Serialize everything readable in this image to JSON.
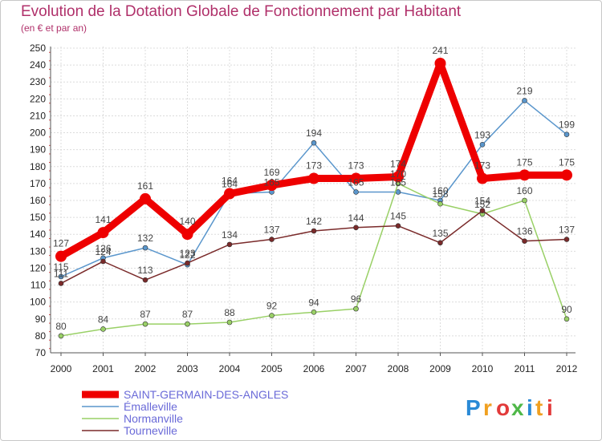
{
  "header": {
    "title": "Evolution de la Dotation Globale de Fonctionnement par Habitant",
    "subtitle": "(en € et par an)"
  },
  "logo": {
    "letters": [
      "P",
      "r",
      "o",
      "x",
      "i",
      "t",
      "i"
    ],
    "colors": [
      "#2a8ad6",
      "#f0a020",
      "#e23a3a",
      "#4fb848",
      "#2a8ad6",
      "#f0a020",
      "#e23a3a"
    ]
  },
  "chart_data": {
    "type": "line",
    "title": "Evolution de la Dotation Globale de Fonctionnement par Habitant",
    "subtitle": "(en € et par an)",
    "x": [
      "2000",
      "2001",
      "2002",
      "2003",
      "2004",
      "2005",
      "2006",
      "2007",
      "2008",
      "2009",
      "2010",
      "2011",
      "2012"
    ],
    "ylim": [
      70,
      250
    ],
    "yticks": [
      70,
      80,
      90,
      100,
      110,
      120,
      130,
      140,
      150,
      160,
      170,
      180,
      190,
      200,
      210,
      220,
      230,
      240,
      250
    ],
    "grid": true,
    "legend_position": "bottom-left",
    "series": [
      {
        "name": "SAINT-GERMAIN-DES-ANGLES",
        "color": "#ee0000",
        "values": [
          127,
          141,
          161,
          140,
          164,
          169,
          173,
          173,
          174,
          241,
          173,
          175,
          175
        ],
        "labels": [
          "127",
          "141",
          "161",
          "140",
          "164",
          "169",
          "173",
          "173",
          "174",
          "241",
          "173",
          "175",
          "175"
        ]
      },
      {
        "name": "Émalleville",
        "color": "#5a96cc",
        "values": [
          115,
          126,
          132,
          122,
          164,
          165,
          194,
          165,
          165,
          160,
          193,
          219,
          199
        ],
        "labels": [
          "115",
          "126",
          "132",
          "122",
          "164",
          "165",
          "194",
          "165",
          "165",
          "160",
          "193",
          "219",
          "199"
        ]
      },
      {
        "name": "Normanville",
        "color": "#99d066",
        "values": [
          80,
          84,
          87,
          87,
          88,
          92,
          94,
          96,
          170,
          158,
          152,
          160,
          90
        ],
        "labels": [
          "80",
          "84",
          "87",
          "87",
          "88",
          "92",
          "94",
          "96",
          "170",
          "158",
          "152",
          "160",
          "90"
        ]
      },
      {
        "name": "Tourneville",
        "color": "#7a2a2a",
        "values": [
          111,
          124,
          113,
          123,
          134,
          137,
          142,
          144,
          145,
          135,
          154,
          136,
          137
        ],
        "labels": [
          "111",
          "124",
          "113",
          "123",
          "134",
          "137",
          "142",
          "144",
          "145",
          "135",
          "154",
          "136",
          "137"
        ]
      }
    ]
  }
}
